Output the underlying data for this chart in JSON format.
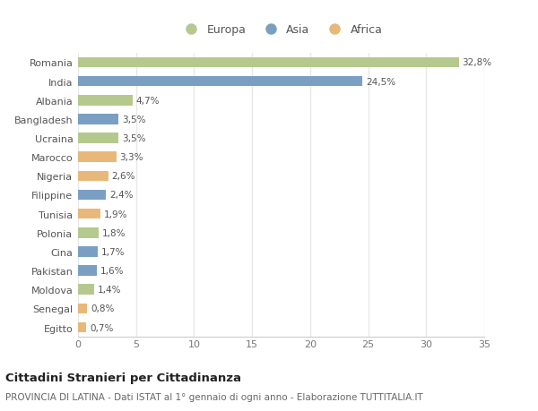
{
  "countries": [
    "Romania",
    "India",
    "Albania",
    "Bangladesh",
    "Ucraina",
    "Marocco",
    "Nigeria",
    "Filippine",
    "Tunisia",
    "Polonia",
    "Cina",
    "Pakistan",
    "Moldova",
    "Senegal",
    "Egitto"
  ],
  "values": [
    32.8,
    24.5,
    4.7,
    3.5,
    3.5,
    3.3,
    2.6,
    2.4,
    1.9,
    1.8,
    1.7,
    1.6,
    1.4,
    0.8,
    0.7
  ],
  "labels": [
    "32,8%",
    "24,5%",
    "4,7%",
    "3,5%",
    "3,5%",
    "3,3%",
    "2,6%",
    "2,4%",
    "1,9%",
    "1,8%",
    "1,7%",
    "1,6%",
    "1,4%",
    "0,8%",
    "0,7%"
  ],
  "continents": [
    "Europa",
    "Asia",
    "Europa",
    "Asia",
    "Europa",
    "Africa",
    "Africa",
    "Asia",
    "Africa",
    "Europa",
    "Asia",
    "Asia",
    "Europa",
    "Africa",
    "Africa"
  ],
  "colors": {
    "Europa": "#b5c98e",
    "Asia": "#7a9fc2",
    "Africa": "#e8b87a"
  },
  "xlim": [
    0,
    35
  ],
  "xticks": [
    0,
    5,
    10,
    15,
    20,
    25,
    30,
    35
  ],
  "title": "Cittadini Stranieri per Cittadinanza",
  "subtitle": "PROVINCIA DI LATINA - Dati ISTAT al 1° gennaio di ogni anno - Elaborazione TUTTITALIA.IT",
  "background_color": "#ffffff",
  "bar_alpha": 1.0,
  "grid_color": "#e8e8e8"
}
